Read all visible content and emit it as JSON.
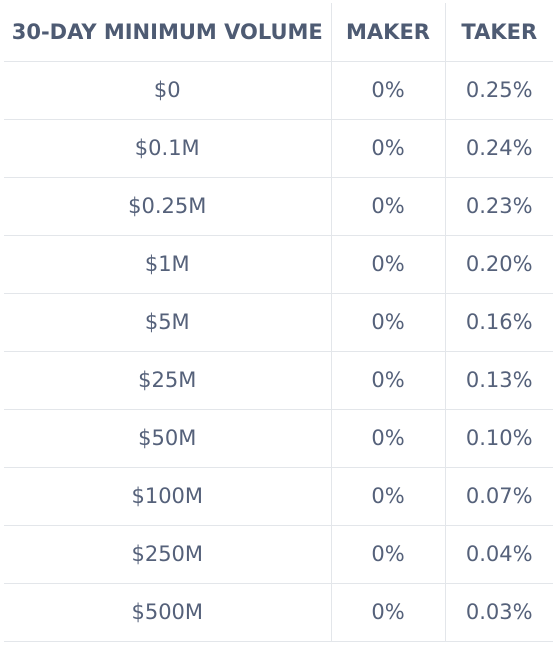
{
  "table": {
    "headers": [
      "30-DAY MINIMUM VOLUME",
      "MAKER",
      "TAKER"
    ],
    "rows": [
      {
        "volume": "$0",
        "maker": "0%",
        "taker": "0.25%"
      },
      {
        "volume": "$0.1M",
        "maker": "0%",
        "taker": "0.24%"
      },
      {
        "volume": "$0.25M",
        "maker": "0%",
        "taker": "0.23%"
      },
      {
        "volume": "$1M",
        "maker": "0%",
        "taker": "0.20%"
      },
      {
        "volume": "$5M",
        "maker": "0%",
        "taker": "0.16%"
      },
      {
        "volume": "$25M",
        "maker": "0%",
        "taker": "0.13%"
      },
      {
        "volume": "$50M",
        "maker": "0%",
        "taker": "0.10%"
      },
      {
        "volume": "$100M",
        "maker": "0%",
        "taker": "0.07%"
      },
      {
        "volume": "$250M",
        "maker": "0%",
        "taker": "0.04%"
      },
      {
        "volume": "$500M",
        "maker": "0%",
        "taker": "0.03%"
      }
    ]
  },
  "colors": {
    "text": "#4e5b73",
    "border": "#e3e6ea",
    "background": "#ffffff"
  }
}
